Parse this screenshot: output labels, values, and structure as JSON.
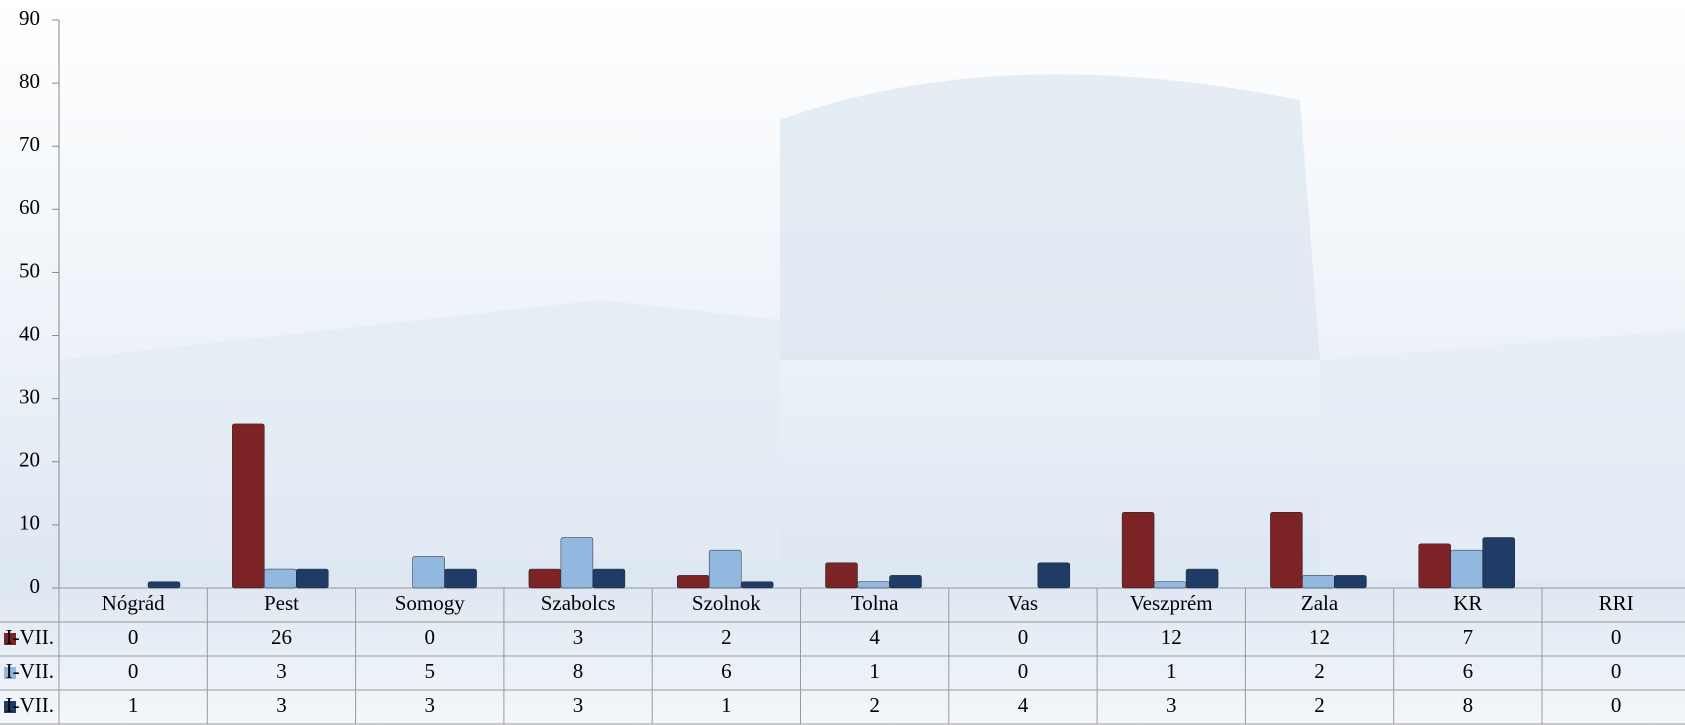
{
  "chart_data": {
    "type": "bar",
    "categories": [
      "Nógrád",
      "Pest",
      "Somogy",
      "Szabolcs",
      "Szolnok",
      "Tolna",
      "Vas",
      "Veszprém",
      "Zala",
      "KR",
      "RRI"
    ],
    "series": [
      {
        "name": "I-VII.",
        "color": "#7b2325",
        "values": [
          0,
          26,
          0,
          3,
          2,
          4,
          0,
          12,
          12,
          7,
          0
        ]
      },
      {
        "name": "I-VII.",
        "color": "#93b8e0",
        "values": [
          0,
          3,
          5,
          8,
          6,
          1,
          0,
          1,
          2,
          6,
          0
        ]
      },
      {
        "name": "I-VII.",
        "color": "#1f3c66",
        "values": [
          1,
          3,
          3,
          3,
          1,
          2,
          4,
          3,
          2,
          8,
          0
        ]
      }
    ],
    "ylim": [
      0,
      90
    ],
    "yticks": [
      0,
      10,
      20,
      30,
      40,
      50,
      60,
      70,
      80,
      90
    ]
  }
}
